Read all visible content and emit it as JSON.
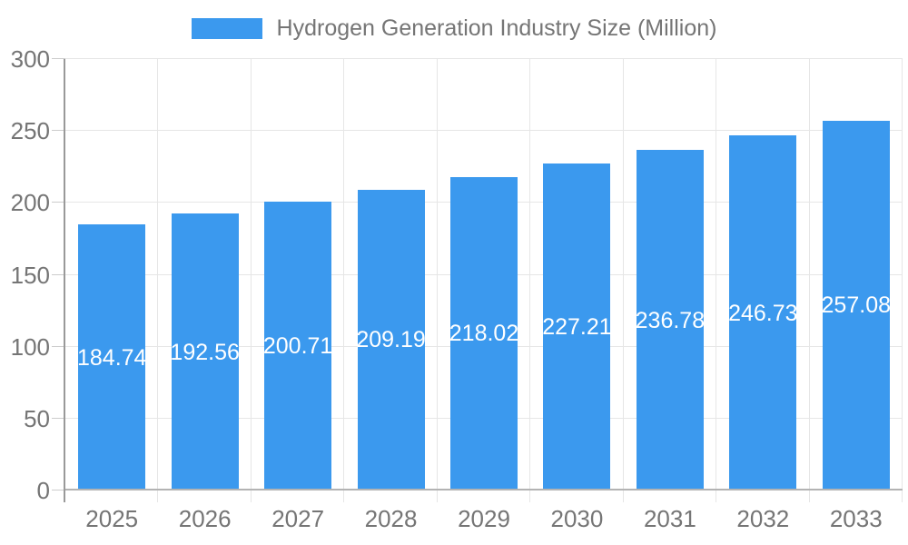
{
  "legend": {
    "label": "Hydrogen Generation Industry Size (Million)"
  },
  "colors": {
    "bar": "#3b99ee",
    "grid_line": "#e6e6e6",
    "axis_line": "#999999",
    "baseline": "#b3b3b3",
    "tick_mark": "#cccccc",
    "axis_text": "#757575",
    "value_text": "#ffffff",
    "background": "#ffffff"
  },
  "chart_data": {
    "type": "bar",
    "title": "Hydrogen Generation Industry Size (Million)",
    "categories": [
      "2025",
      "2026",
      "2027",
      "2028",
      "2029",
      "2030",
      "2031",
      "2032",
      "2033"
    ],
    "series": [
      {
        "name": "Hydrogen Generation Industry Size (Million)",
        "values": [
          184.74,
          192.56,
          200.71,
          209.19,
          218.02,
          227.21,
          236.78,
          246.73,
          257.08
        ]
      }
    ],
    "value_labels": [
      "184.74",
      "192.56",
      "200.71",
      "209.19",
      "218.02",
      "227.21",
      "236.78",
      "246.73",
      "257.08"
    ],
    "value_label_position": "inside-center",
    "xlabel": "",
    "ylabel": "",
    "ylim": [
      0,
      300
    ],
    "yticks": [
      "0",
      "50",
      "100",
      "150",
      "200",
      "250",
      "300"
    ],
    "grid": true,
    "legend_position": "top-center"
  }
}
